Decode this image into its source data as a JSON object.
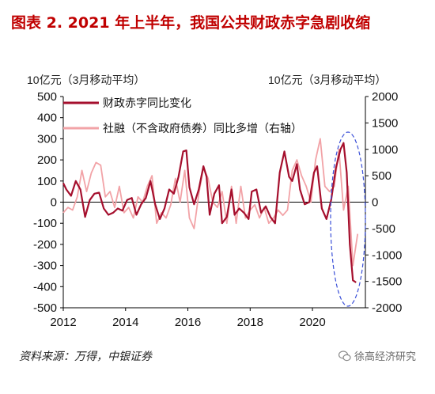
{
  "header": {
    "title": "图表 2.  2021 年上半年，我国公共财政赤字急剧收缩"
  },
  "footer": {
    "source": "资料来源：万得，中银证券",
    "watermark": "徐高经济研究",
    "watermark_icon": "wechat-icon"
  },
  "chart_data": {
    "type": "line",
    "left_unit": "10亿元（3月移动平均）",
    "right_unit": "10亿元（3月移动平均）",
    "xlim": [
      2012,
      2021.7
    ],
    "ylim_left": [
      -500,
      500
    ],
    "ylim_right": [
      -2000,
      2000
    ],
    "x_ticks": [
      "2012",
      "2014",
      "2016",
      "2018",
      "2020"
    ],
    "y_left_ticks": [
      "500",
      "400",
      "300",
      "200",
      "100",
      "0",
      "-100",
      "-200",
      "-300",
      "-400",
      "-500"
    ],
    "y_right_ticks": [
      "2000",
      "1500",
      "1000",
      "500",
      "0",
      "-500",
      "-1000",
      "-1500",
      "-2000"
    ],
    "legend_position": "top-left",
    "annotation": "dashed-blue-ellipse-around-2021",
    "series": [
      {
        "name": "财政赤字同比变化",
        "axis": "left",
        "color": "#a50f2d",
        "x": [
          2012.0,
          2012.1,
          2012.25,
          2012.4,
          2012.55,
          2012.7,
          2012.85,
          2013.0,
          2013.15,
          2013.3,
          2013.45,
          2013.6,
          2013.75,
          2013.9,
          2014.05,
          2014.2,
          2014.35,
          2014.5,
          2014.65,
          2014.8,
          2014.95,
          2015.1,
          2015.25,
          2015.4,
          2015.55,
          2015.7,
          2015.85,
          2015.95,
          2016.05,
          2016.2,
          2016.35,
          2016.5,
          2016.6,
          2016.7,
          2016.85,
          2017.0,
          2017.1,
          2017.25,
          2017.4,
          2017.5,
          2017.65,
          2017.8,
          2017.95,
          2018.05,
          2018.2,
          2018.35,
          2018.5,
          2018.65,
          2018.8,
          2018.95,
          2019.1,
          2019.25,
          2019.35,
          2019.5,
          2019.6,
          2019.75,
          2019.9,
          2020.05,
          2020.15,
          2020.3,
          2020.45,
          2020.6,
          2020.75,
          2020.9,
          2021.0,
          2021.1,
          2021.2,
          2021.3,
          2021.4
        ],
        "values": [
          90,
          60,
          30,
          100,
          60,
          -70,
          10,
          40,
          45,
          -30,
          -60,
          -50,
          -30,
          -40,
          10,
          20,
          -60,
          -10,
          20,
          100,
          -10,
          -80,
          -30,
          60,
          40,
          120,
          240,
          245,
          70,
          -10,
          60,
          170,
          120,
          -60,
          40,
          80,
          -100,
          -70,
          60,
          -60,
          -30,
          -50,
          -80,
          50,
          60,
          -50,
          -20,
          -70,
          -100,
          140,
          240,
          120,
          100,
          180,
          60,
          -10,
          0,
          140,
          170,
          -30,
          -80,
          10,
          160,
          250,
          280,
          140,
          -200,
          -370,
          -380
        ]
      },
      {
        "name": "社融（不含政府债券）同比多增（右轴）",
        "axis": "right",
        "color": "#f2a3a7",
        "x": [
          2012.0,
          2012.15,
          2012.3,
          2012.45,
          2012.6,
          2012.75,
          2012.9,
          2013.05,
          2013.2,
          2013.35,
          2013.5,
          2013.65,
          2013.8,
          2013.95,
          2014.1,
          2014.25,
          2014.4,
          2014.55,
          2014.7,
          2014.85,
          2015.0,
          2015.15,
          2015.3,
          2015.45,
          2015.6,
          2015.75,
          2015.9,
          2016.05,
          2016.2,
          2016.35,
          2016.5,
          2016.65,
          2016.8,
          2016.95,
          2017.1,
          2017.25,
          2017.4,
          2017.55,
          2017.7,
          2017.85,
          2018.0,
          2018.15,
          2018.3,
          2018.45,
          2018.6,
          2018.75,
          2018.9,
          2019.05,
          2019.2,
          2019.35,
          2019.5,
          2019.65,
          2019.8,
          2019.95,
          2020.1,
          2020.25,
          2020.4,
          2020.55,
          2020.7,
          2020.85,
          2021.0,
          2021.15,
          2021.3,
          2021.45
        ],
        "values": [
          -200,
          -100,
          -150,
          100,
          600,
          200,
          550,
          750,
          700,
          100,
          200,
          -100,
          300,
          -200,
          -100,
          -300,
          100,
          0,
          300,
          500,
          -400,
          -200,
          -300,
          -50,
          450,
          0,
          600,
          -300,
          -500,
          150,
          650,
          450,
          0,
          -100,
          200,
          -400,
          300,
          -400,
          300,
          -300,
          -150,
          -50,
          -300,
          -100,
          -400,
          -300,
          -150,
          -250,
          -150,
          600,
          800,
          500,
          300,
          0,
          800,
          1200,
          300,
          200,
          300,
          1000,
          -150,
          300,
          -1200,
          -600
        ]
      }
    ]
  }
}
